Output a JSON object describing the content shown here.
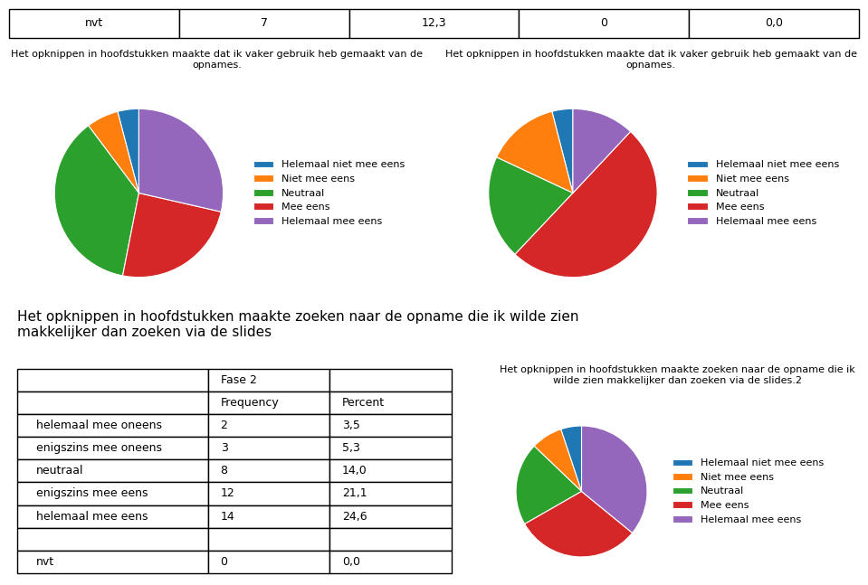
{
  "chart_data": [
    {
      "type": "table",
      "rows": [
        [
          "nvt",
          "7",
          "12,3",
          "0",
          "0,0"
        ]
      ]
    },
    {
      "type": "pie",
      "title": "Het opknippen in hoofdstukken maakte dat ik vaker gebruik heb gemaakt van de opnames.",
      "categories": [
        "Helemaal niet mee eens",
        "Niet mee eens",
        "Neutraal",
        "Mee eens",
        "Helemaal mee eens"
      ],
      "values": [
        3.5,
        5.3,
        31.6,
        21.1,
        24.6
      ],
      "legend": "center left"
    },
    {
      "type": "pie",
      "title": "Het opknippen in hoofdstukken maakte dat ik vaker gebruik heb gemaakt van de opnames.",
      "categories": [
        "Helemaal niet mee eens",
        "Niet mee eens",
        "Neutraal",
        "Mee eens",
        "Helemaal mee eens"
      ],
      "values": [
        3.5,
        12.3,
        17.5,
        43.9,
        10.5
      ],
      "legend": "center left"
    },
    {
      "type": "table",
      "title": "Het opknippen in hoofdstukken maakte zoeken naar de opname die ik wilde zien\nmakkelijker dan zoeken via de slides",
      "rows": [
        [
          null,
          "Fase 2",
          null
        ],
        [
          null,
          "Frequency",
          "Percent"
        ],
        [
          "helemaal mee oneens",
          "2",
          "3,5"
        ],
        [
          "enigszins mee oneens",
          "3",
          "5,3"
        ],
        [
          "neutraal",
          "8",
          "14,0"
        ],
        [
          "enigszins mee eens",
          "12",
          "21,1"
        ],
        [
          "helemaal mee eens",
          "14",
          "24,6"
        ],
        [
          null,
          null,
          null
        ],
        [
          "nvt",
          "0",
          "0,0"
        ]
      ]
    },
    {
      "type": "pie",
      "title": "Het opknippen in hoofdstukken maakte zoeken naar de opname die ik wilde zien makkelijker dan zoeken via de slides.2",
      "categories": [
        "Helemaal niet mee eens",
        "Niet mee eens",
        "Neutraal",
        "Mee eens",
        "Helemaal mee eens"
      ],
      "values": [
        3.5,
        5.3,
        14.0,
        21.1,
        24.6
      ],
      "legend": "center left"
    }
  ]
}
